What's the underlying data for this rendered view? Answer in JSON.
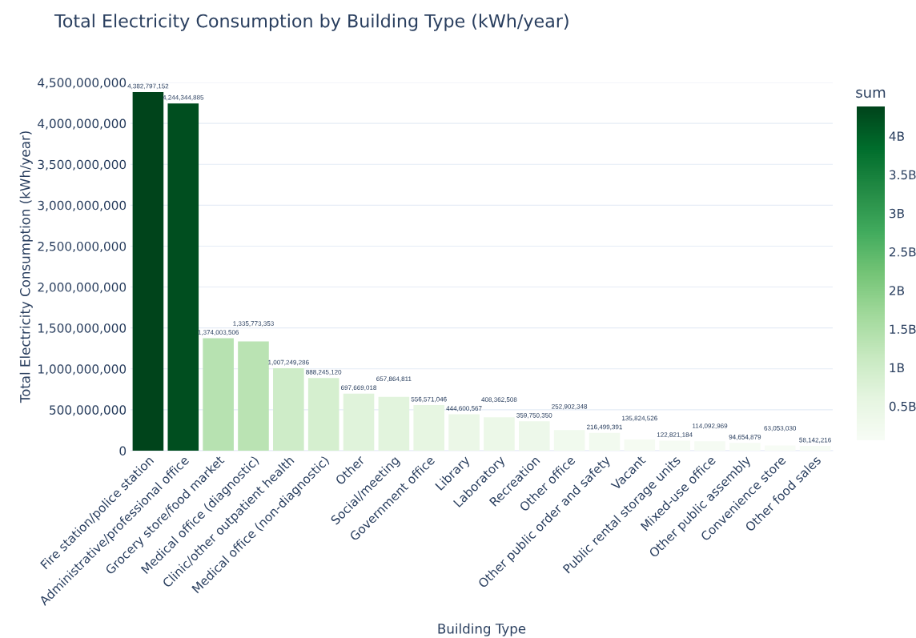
{
  "chart_data": {
    "type": "bar",
    "title": "Total Electricity Consumption by Building Type (kWh/year)",
    "xlabel": "Building Type",
    "ylabel": "Total Electricity Consumption (kWh/year)",
    "clabel": "sum",
    "categories": [
      "Fire station/police station",
      "Administrative/professional office",
      "Grocery store/food market",
      "Medical office (diagnostic)",
      "Clinic/other outpatient health",
      "Medical office (non-diagnostic)",
      "Other",
      "Social/meeting",
      "Government office",
      "Library",
      "Laboratory",
      "Recreation",
      "Other office",
      "Other public order and safety",
      "Vacant",
      "Public rental storage units",
      "Mixed-use office",
      "Other public assembly",
      "Convenience store",
      "Other food sales"
    ],
    "values": [
      4382797152,
      4244344885,
      1374003506,
      1335773353,
      1007249286,
      888245120,
      697669018,
      657864811,
      556571046,
      444600567,
      408362508,
      359750350,
      252902348,
      216499391,
      135824526,
      122821184,
      114092969,
      94654879,
      63053030,
      58142216
    ],
    "value_labels": [
      "4,382,797,152",
      "4,244,344,885",
      "1,374,003,506",
      "1,335,773,353",
      "1,007,249,286",
      "888,245,120",
      "697,669,018",
      "657,864,811",
      "556,571,046",
      "444,600,567",
      "408,362,508",
      "359,750,350",
      "252,902,348",
      "216,499,391",
      "135,824,526",
      "122,821,184",
      "114,092,969",
      "94,654,879",
      "63,053,030",
      "58,142,216"
    ],
    "ylim": [
      0,
      4500000000
    ],
    "yticks": [
      {
        "value": 0,
        "label": "0"
      },
      {
        "value": 500000000,
        "label": "500,000,000"
      },
      {
        "value": 1000000000,
        "label": "1,000,000,000"
      },
      {
        "value": 1500000000,
        "label": "1,500,000,000"
      },
      {
        "value": 2000000000,
        "label": "2,000,000,000"
      },
      {
        "value": 2500000000,
        "label": "2,500,000,000"
      },
      {
        "value": 3000000000,
        "label": "3,000,000,000"
      },
      {
        "value": 3500000000,
        "label": "3,500,000,000"
      },
      {
        "value": 4000000000,
        "label": "4,000,000,000"
      },
      {
        "value": 4500000000,
        "label": "4,500,000,000"
      }
    ],
    "clim": [
      58142216,
      4382797152
    ],
    "cticks": [
      {
        "value": 500000000,
        "label": "0.5B"
      },
      {
        "value": 1000000000,
        "label": "1B"
      },
      {
        "value": 1500000000,
        "label": "1.5B"
      },
      {
        "value": 2000000000,
        "label": "2B"
      },
      {
        "value": 2500000000,
        "label": "2.5B"
      },
      {
        "value": 3000000000,
        "label": "3B"
      },
      {
        "value": 3500000000,
        "label": "3.5B"
      },
      {
        "value": 4000000000,
        "label": "4B"
      }
    ],
    "grid": "y",
    "legend": false
  }
}
